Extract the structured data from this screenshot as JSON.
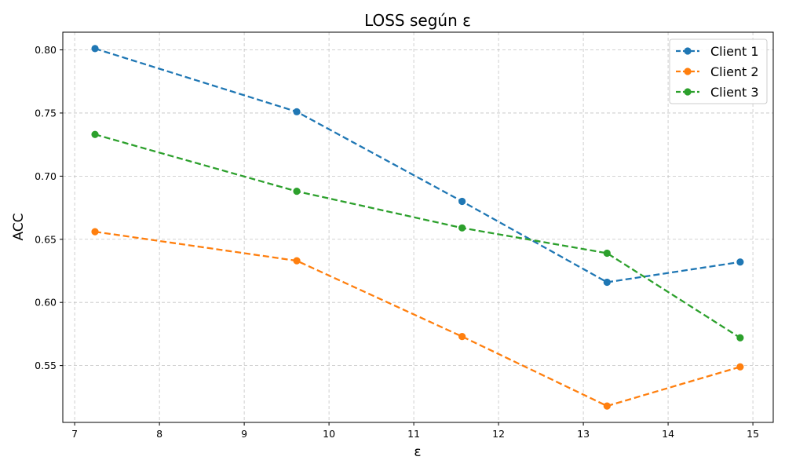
{
  "chart_data": {
    "type": "line",
    "title": "LOSS según ε",
    "xlabel": "ε",
    "ylabel": "ACC",
    "x": [
      7.24,
      9.62,
      11.57,
      13.28,
      14.85
    ],
    "xlim": [
      6.86,
      15.24
    ],
    "ylim": [
      0.505,
      0.814
    ],
    "xticks": [
      7,
      8,
      9,
      10,
      11,
      12,
      13,
      14,
      15
    ],
    "yticks": [
      0.55,
      0.6,
      0.65,
      0.7,
      0.75,
      0.8
    ],
    "ytick_labels": [
      "0.55",
      "0.60",
      "0.65",
      "0.70",
      "0.75",
      "0.80"
    ],
    "grid": true,
    "legend_position": "top-right",
    "series": [
      {
        "name": "Client 1",
        "color": "#1f77b4",
        "values": [
          0.801,
          0.751,
          0.68,
          0.616,
          0.632
        ]
      },
      {
        "name": "Client 2",
        "color": "#ff7f0e",
        "values": [
          0.656,
          0.633,
          0.573,
          0.518,
          0.549
        ]
      },
      {
        "name": "Client 3",
        "color": "#2ca02c",
        "values": [
          0.733,
          0.688,
          0.659,
          0.639,
          0.572
        ]
      }
    ]
  }
}
